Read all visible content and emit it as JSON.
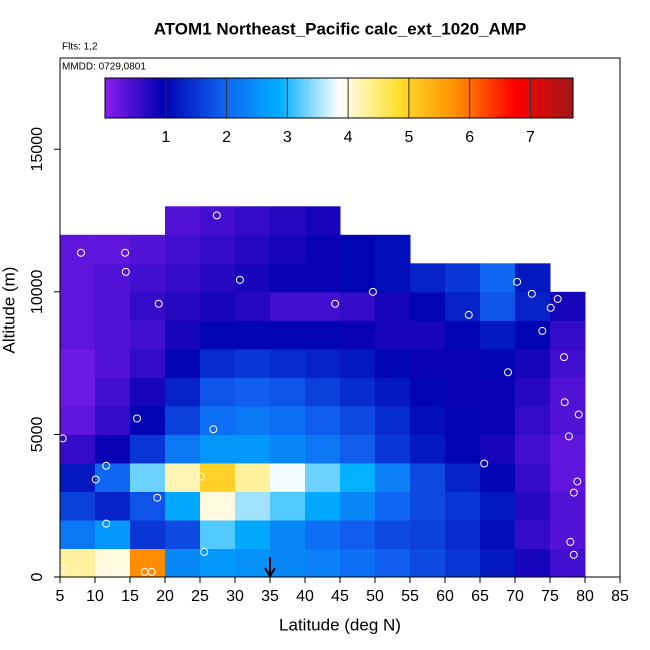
{
  "chart_data": {
    "type": "heatmap",
    "title": "ATOM1 Northeast_Pacific calc_ext_1020_AMP",
    "subtitle": "Flts: 1,2",
    "annotation": "MMDD: 0729,0801",
    "x_label": "Latitude (deg N)",
    "y_label": "Altitude (m)",
    "xlim": [
      5,
      85
    ],
    "ylim": [
      0,
      18200
    ],
    "xticks": [
      5,
      10,
      15,
      20,
      25,
      30,
      35,
      40,
      45,
      50,
      55,
      60,
      65,
      70,
      75,
      80,
      85
    ],
    "yticks": [
      0,
      5000,
      10000,
      15000
    ],
    "x_bins": [
      5,
      10,
      15,
      20,
      25,
      30,
      35,
      40,
      45,
      50,
      55,
      60,
      65,
      70,
      75,
      80
    ],
    "y_bins": [
      0,
      1000,
      2000,
      3000,
      4000,
      5000,
      6000,
      7000,
      8000,
      9000,
      10000,
      11000,
      12000,
      13000
    ],
    "z": [
      [
        4.3,
        4.0,
        5.8,
        2.4,
        2.6,
        2.5,
        2.4,
        2.3,
        2.1,
        1.9,
        1.7,
        1.5,
        1.2,
        0.8,
        0.5
      ],
      [
        2.2,
        2.6,
        1.5,
        1.7,
        3.2,
        2.8,
        2.4,
        2.1,
        1.9,
        1.7,
        1.6,
        1.4,
        1.1,
        0.6,
        0.4
      ],
      [
        1.6,
        1.3,
        1.8,
        2.8,
        4.0,
        3.5,
        3.2,
        2.8,
        2.4,
        2.0,
        1.7,
        1.5,
        1.2,
        0.7,
        0.4
      ],
      [
        1.2,
        2.0,
        3.3,
        4.2,
        5.0,
        4.3,
        3.8,
        3.3,
        2.9,
        2.3,
        1.7,
        1.3,
        1.0,
        0.6,
        0.3
      ],
      [
        0.6,
        0.9,
        1.5,
        2.2,
        2.6,
        2.6,
        2.4,
        2.2,
        1.9,
        1.5,
        1.2,
        1.0,
        0.8,
        0.5,
        0.3
      ],
      [
        0.3,
        0.6,
        1.0,
        1.6,
        2.1,
        2.2,
        2.1,
        1.9,
        1.7,
        1.4,
        1.1,
        1.0,
        0.9,
        0.6,
        0.4
      ],
      [
        0.2,
        0.5,
        0.8,
        1.3,
        1.8,
        1.9,
        1.8,
        1.6,
        1.4,
        1.2,
        1.0,
        0.9,
        0.9,
        0.7,
        0.4
      ],
      [
        0.2,
        0.4,
        0.6,
        1.0,
        1.4,
        1.5,
        1.4,
        1.3,
        1.2,
        1.0,
        0.9,
        0.9,
        1.0,
        0.8,
        0.5
      ],
      [
        0.3,
        0.4,
        0.5,
        0.8,
        1.0,
        1.0,
        1.0,
        1.0,
        0.9,
        0.8,
        0.8,
        1.0,
        1.2,
        1.0,
        0.6
      ],
      [
        0.3,
        0.4,
        0.6,
        0.7,
        0.8,
        0.7,
        0.5,
        0.5,
        0.6,
        0.8,
        1.0,
        1.3,
        1.8,
        1.3,
        0.8
      ],
      [
        0.3,
        0.4,
        0.5,
        0.6,
        0.7,
        0.8,
        0.9,
        0.9,
        1.0,
        1.1,
        1.3,
        1.5,
        2.0,
        1.2,
        null
      ],
      [
        0.3,
        0.3,
        0.4,
        0.5,
        0.6,
        0.7,
        0.8,
        0.9,
        1.0,
        1.1,
        null,
        null,
        null,
        null,
        null
      ],
      [
        null,
        null,
        null,
        0.4,
        0.5,
        0.6,
        0.7,
        0.8,
        null,
        null,
        null,
        null,
        null,
        null,
        null
      ]
    ],
    "points": {
      "x": [
        5.4,
        11,
        18.1,
        17.1,
        11.6,
        18.9,
        25.1,
        10.1,
        11.6,
        5.4,
        16,
        26.9,
        25.6,
        8,
        14.3,
        14.4,
        19.1,
        27.4,
        30.7,
        44.3,
        49.7,
        63.4,
        67.6,
        70.3,
        72.4,
        76.1,
        75.1,
        73.9,
        77,
        69,
        77.1,
        79.1,
        77.7,
        65.6,
        78.9,
        78.4,
        77.9,
        78.4
      ],
      "y": [
        280,
        180,
        180,
        180,
        1870,
        2780,
        3520,
        3420,
        3900,
        4860,
        5560,
        5180,
        880,
        11370,
        11370,
        10700,
        9580,
        12680,
        10420,
        9580,
        10000,
        9190,
        11440,
        10350,
        9930,
        9750,
        9440,
        8630,
        7710,
        7180,
        6130,
        5700,
        4930,
        3980,
        3350,
        2960,
        1230,
        780
      ],
      "color": "#ffffff"
    },
    "arrow_x": 35,
    "clim": [
      0,
      7.7
    ],
    "colorbar_ticks": [
      1,
      2,
      3,
      4,
      5,
      6,
      7
    ],
    "colormap": [
      "#8a1ef0",
      "#0000b0",
      "#1060f0",
      "#00b0ff",
      "#ffffff",
      "#ffe030",
      "#ff9000",
      "#ff0000",
      "#a01818"
    ]
  }
}
